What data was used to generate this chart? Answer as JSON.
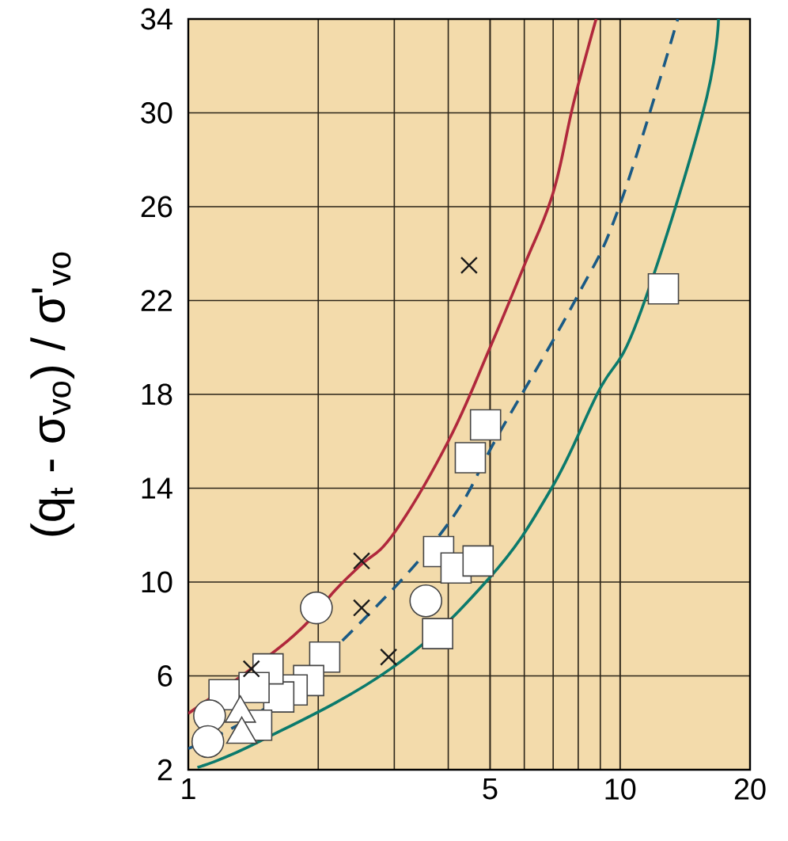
{
  "chart_data": {
    "type": "scatter",
    "ylabel": "(q$_{t}$ - σ$_{vo}$) / σ'$_{vo}$",
    "log": "x",
    "grid": true,
    "xlim": [
      1,
      20
    ],
    "ylim": [
      2,
      34
    ],
    "xticks": [
      1,
      5,
      10,
      20
    ],
    "yticks": [
      2,
      6,
      10,
      14,
      18,
      22,
      26,
      30,
      34
    ],
    "series": [
      {
        "type": "line",
        "line_style": "solid",
        "marker": "none",
        "color": "#b0283c",
        "x": [
          1,
          1.7,
          2.2,
          2.5,
          3,
          4,
          5,
          6,
          7,
          7.8,
          8.8
        ],
        "values": [
          4.4,
          7.5,
          9.7,
          10.7,
          12.1,
          16,
          20,
          23.5,
          26.6,
          30.4,
          34
        ]
      },
      {
        "type": "line",
        "line_style": "dashed",
        "marker": "none",
        "color": "#1a5a85",
        "x": [
          1,
          1.5,
          2.36,
          3.93,
          5.27,
          7.92,
          10,
          13.6
        ],
        "values": [
          2.9,
          4.6,
          7.8,
          12.3,
          16.4,
          22.1,
          26.1,
          34
        ]
      },
      {
        "type": "line",
        "line_style": "solid",
        "marker": "none",
        "color": "#0b7a6c",
        "x": [
          1.05,
          1.46,
          2.94,
          4.94,
          6.94,
          8.9,
          11,
          15.5,
          16.9
        ],
        "values": [
          2.1,
          3.2,
          6.3,
          10.1,
          14,
          18.1,
          21.2,
          29.9,
          34
        ]
      },
      {
        "marker": "square",
        "color": "#ffffff",
        "x": [
          12.6,
          4.88,
          4.5,
          3.8,
          4.17,
          4.69,
          3.78,
          2.07,
          1.9,
          1.74,
          1.62,
          1.53,
          1.42,
          1.21,
          1.44
        ],
        "values": [
          22.5,
          16.7,
          15.3,
          11.3,
          10.6,
          10.9,
          7.8,
          6.8,
          5.8,
          5.4,
          5.1,
          6.3,
          5.5,
          5.2,
          3.9
        ]
      },
      {
        "marker": "circle",
        "color": "#ffffff",
        "x": [
          1.98,
          3.55,
          1.12,
          1.11
        ],
        "values": [
          8.9,
          9.2,
          4.3,
          3.2
        ]
      },
      {
        "marker": "triangle",
        "color": "#ffffff",
        "x": [
          1.32,
          1.33
        ],
        "values": [
          4.4,
          3.5
        ]
      },
      {
        "marker": "cross",
        "color": "#1a1a1a",
        "x": [
          4.47,
          2.52,
          2.52,
          2.91,
          1.4
        ],
        "values": [
          23.5,
          10.9,
          8.9,
          6.8,
          6.3
        ]
      }
    ]
  }
}
